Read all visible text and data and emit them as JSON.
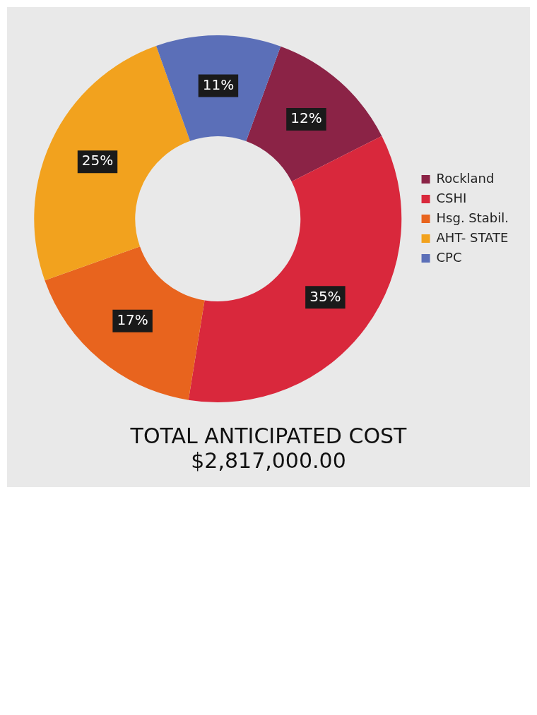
{
  "chart_data": {
    "type": "donut",
    "title": "TOTAL ANTICIPATED COST",
    "subtitle": "$2,817,000.00",
    "categories": [
      "Rockland",
      "CSHI",
      "Hsg. Stabil.",
      "AHT- STATE",
      "CPC"
    ],
    "values": [
      12,
      35,
      17,
      25,
      11
    ],
    "colors": [
      "#8b2346",
      "#d9283c",
      "#e8641e",
      "#f2a21e",
      "#5b6fb8"
    ],
    "value_labels": [
      "12%",
      "35%",
      "17%",
      "25%",
      "11%"
    ],
    "legend": "right"
  }
}
